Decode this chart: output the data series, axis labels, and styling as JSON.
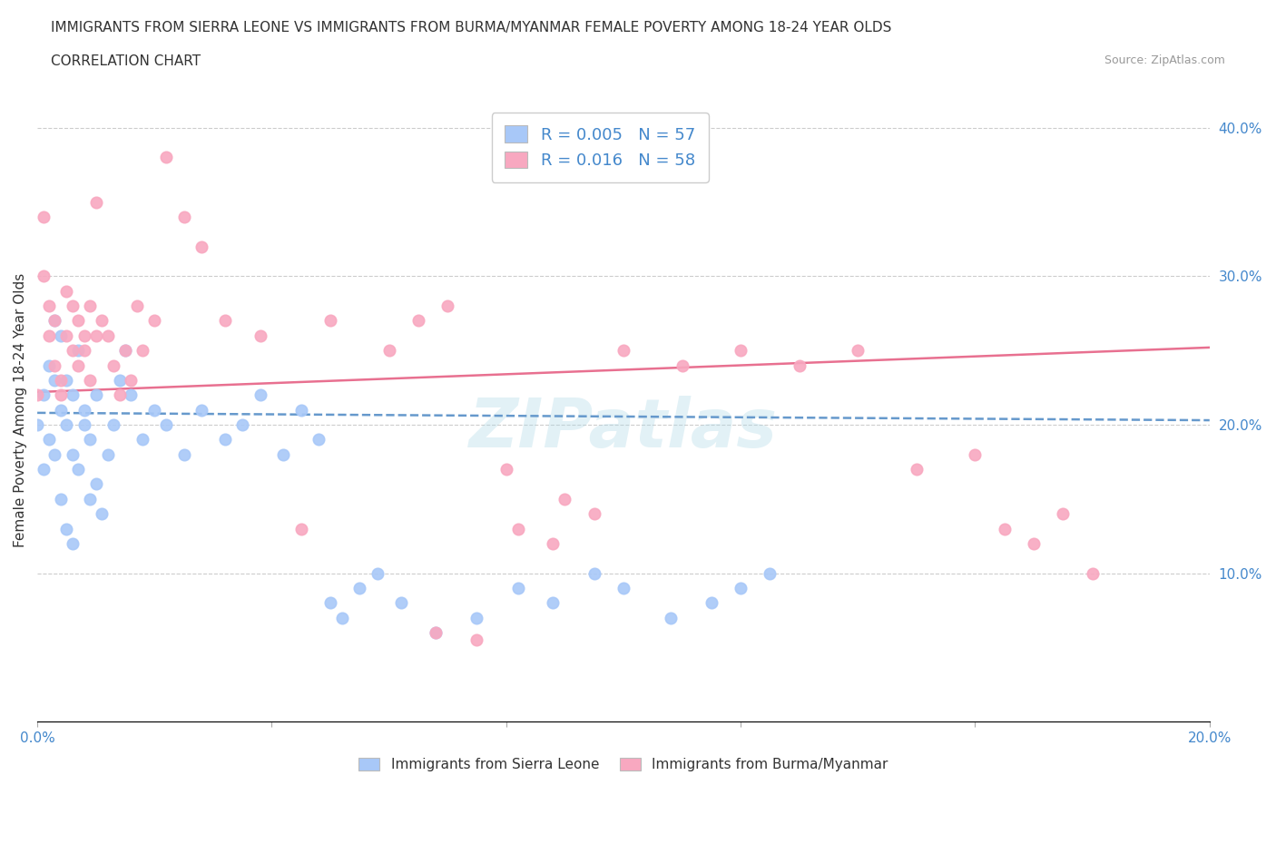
{
  "title_line1": "IMMIGRANTS FROM SIERRA LEONE VS IMMIGRANTS FROM BURMA/MYANMAR FEMALE POVERTY AMONG 18-24 YEAR OLDS",
  "title_line2": "CORRELATION CHART",
  "source_text": "Source: ZipAtlas.com",
  "ylabel": "Female Poverty Among 18-24 Year Olds",
  "xlim": [
    0.0,
    0.2
  ],
  "ylim": [
    0.0,
    0.42
  ],
  "sierra_leone_color": "#a8c8f8",
  "burma_color": "#f8a8c0",
  "sierra_leone_line_color": "#6699cc",
  "burma_line_color": "#e87090",
  "legend_label_sierra": "Immigrants from Sierra Leone",
  "legend_label_burma": "Immigrants from Burma/Myanmar",
  "R_sierra": "0.005",
  "N_sierra": "57",
  "R_burma": "0.016",
  "N_burma": "58",
  "grid_color": "#cccccc",
  "background_color": "#ffffff",
  "sl_x": [
    0.0,
    0.001,
    0.001,
    0.002,
    0.002,
    0.003,
    0.003,
    0.003,
    0.004,
    0.004,
    0.004,
    0.005,
    0.005,
    0.005,
    0.006,
    0.006,
    0.006,
    0.007,
    0.007,
    0.008,
    0.008,
    0.009,
    0.009,
    0.01,
    0.01,
    0.011,
    0.012,
    0.013,
    0.014,
    0.015,
    0.016,
    0.018,
    0.02,
    0.022,
    0.025,
    0.028,
    0.032,
    0.035,
    0.038,
    0.042,
    0.045,
    0.048,
    0.05,
    0.052,
    0.055,
    0.058,
    0.062,
    0.068,
    0.075,
    0.082,
    0.088,
    0.095,
    0.1,
    0.108,
    0.115,
    0.12,
    0.125
  ],
  "sl_y": [
    0.2,
    0.22,
    0.17,
    0.19,
    0.24,
    0.27,
    0.23,
    0.18,
    0.15,
    0.21,
    0.26,
    0.13,
    0.2,
    0.23,
    0.22,
    0.18,
    0.12,
    0.17,
    0.25,
    0.21,
    0.2,
    0.15,
    0.19,
    0.22,
    0.16,
    0.14,
    0.18,
    0.2,
    0.23,
    0.25,
    0.22,
    0.19,
    0.21,
    0.2,
    0.18,
    0.21,
    0.19,
    0.2,
    0.22,
    0.18,
    0.21,
    0.19,
    0.08,
    0.07,
    0.09,
    0.1,
    0.08,
    0.06,
    0.07,
    0.09,
    0.08,
    0.1,
    0.09,
    0.07,
    0.08,
    0.09,
    0.1
  ],
  "b_x": [
    0.0,
    0.001,
    0.001,
    0.002,
    0.002,
    0.003,
    0.003,
    0.004,
    0.004,
    0.005,
    0.005,
    0.006,
    0.006,
    0.007,
    0.007,
    0.008,
    0.008,
    0.009,
    0.009,
    0.01,
    0.01,
    0.011,
    0.012,
    0.013,
    0.014,
    0.015,
    0.016,
    0.017,
    0.018,
    0.02,
    0.022,
    0.025,
    0.028,
    0.032,
    0.038,
    0.045,
    0.05,
    0.06,
    0.065,
    0.07,
    0.08,
    0.09,
    0.1,
    0.11,
    0.12,
    0.13,
    0.14,
    0.15,
    0.16,
    0.165,
    0.17,
    0.175,
    0.18,
    0.068,
    0.075,
    0.082,
    0.088,
    0.095
  ],
  "b_y": [
    0.22,
    0.3,
    0.34,
    0.28,
    0.26,
    0.24,
    0.27,
    0.23,
    0.22,
    0.26,
    0.29,
    0.28,
    0.25,
    0.24,
    0.27,
    0.26,
    0.25,
    0.28,
    0.23,
    0.26,
    0.35,
    0.27,
    0.26,
    0.24,
    0.22,
    0.25,
    0.23,
    0.28,
    0.25,
    0.27,
    0.38,
    0.34,
    0.32,
    0.27,
    0.26,
    0.13,
    0.27,
    0.25,
    0.27,
    0.28,
    0.17,
    0.15,
    0.25,
    0.24,
    0.25,
    0.24,
    0.25,
    0.17,
    0.18,
    0.13,
    0.12,
    0.14,
    0.1,
    0.06,
    0.055,
    0.13,
    0.12,
    0.14
  ]
}
